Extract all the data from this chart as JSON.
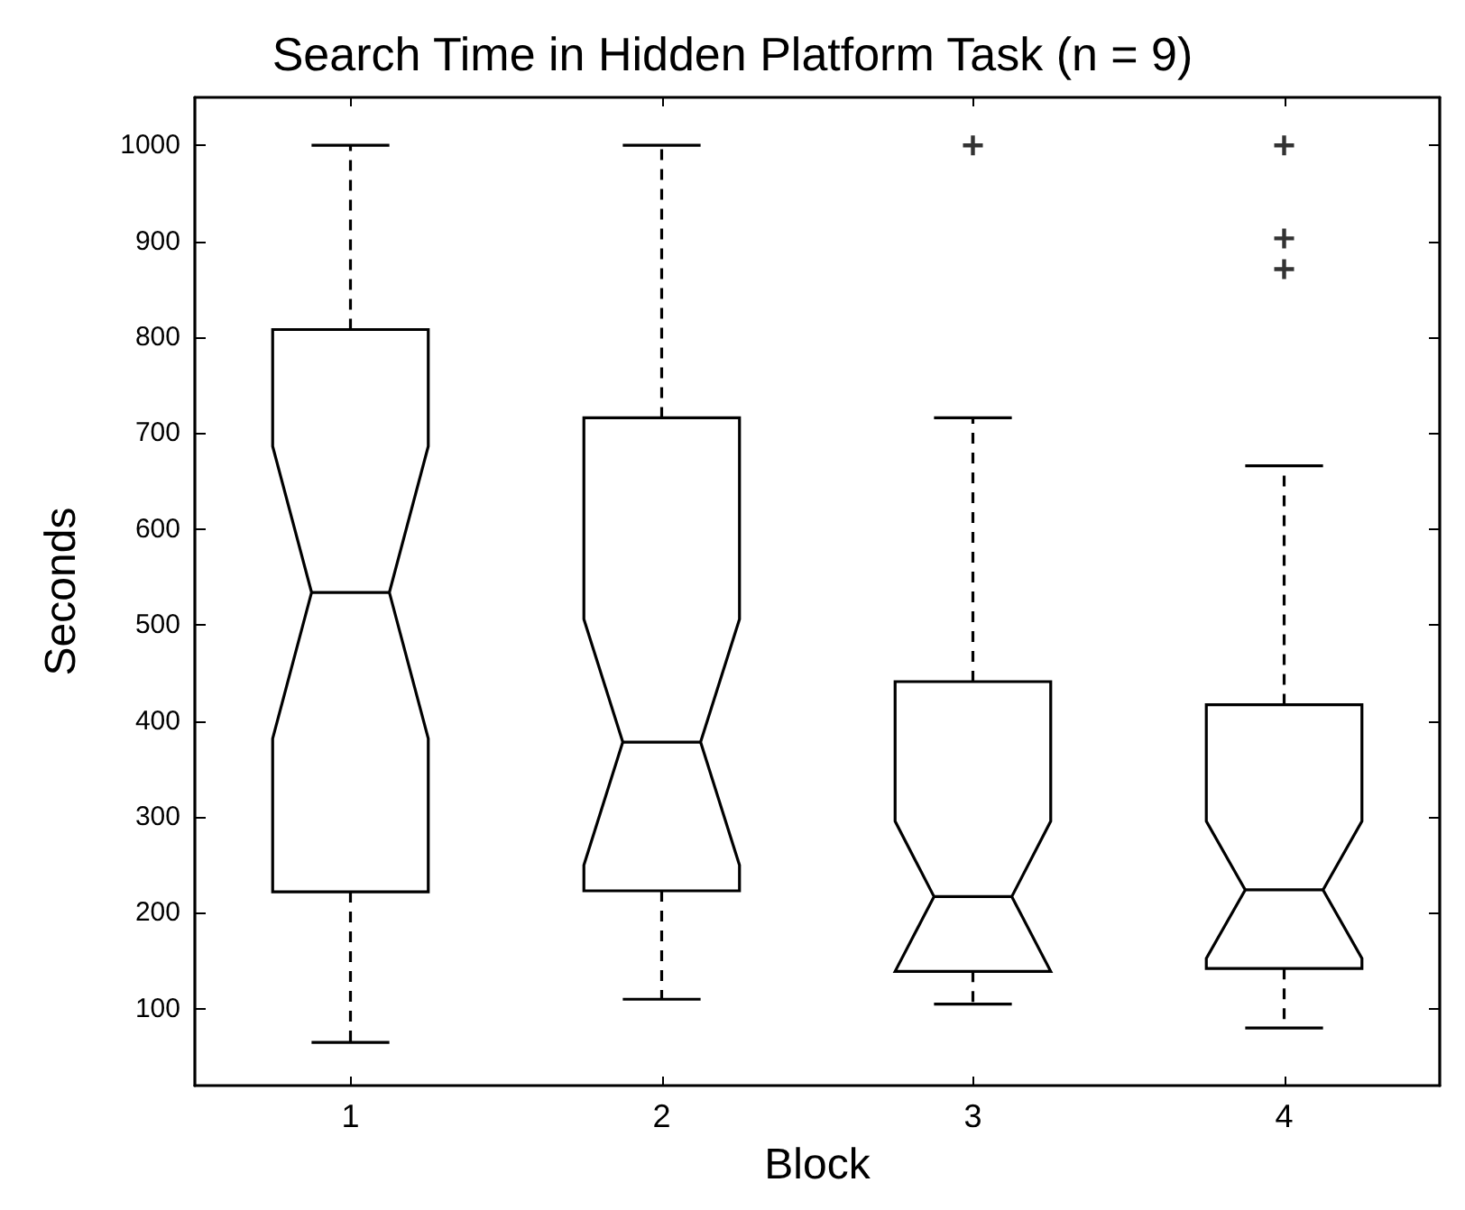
{
  "chart_data": {
    "type": "box",
    "title": "Search Time in Hidden Platform Task (n = 9)",
    "xlabel": "Block",
    "ylabel": "Seconds",
    "categories": [
      "1",
      "2",
      "3",
      "4"
    ],
    "boxes": [
      {
        "low": 65,
        "q1": 222,
        "median": 534,
        "q3": 808,
        "high": 1000
      },
      {
        "low": 110,
        "q1": 223,
        "median": 378,
        "q3": 716,
        "high": 1000
      },
      {
        "low": 105,
        "q1": 139,
        "median": 217,
        "q3": 441,
        "high": 716,
        "outliers": [
          1000
        ]
      },
      {
        "low": 80,
        "q1": 142,
        "median": 224,
        "q3": 417,
        "high": 666,
        "outliers": [
          1000,
          903,
          871
        ]
      }
    ],
    "ylim": [
      20,
      1050
    ],
    "yticks": [
      100,
      200,
      300,
      400,
      500,
      600,
      700,
      800,
      900,
      1000
    ],
    "grid": false
  }
}
